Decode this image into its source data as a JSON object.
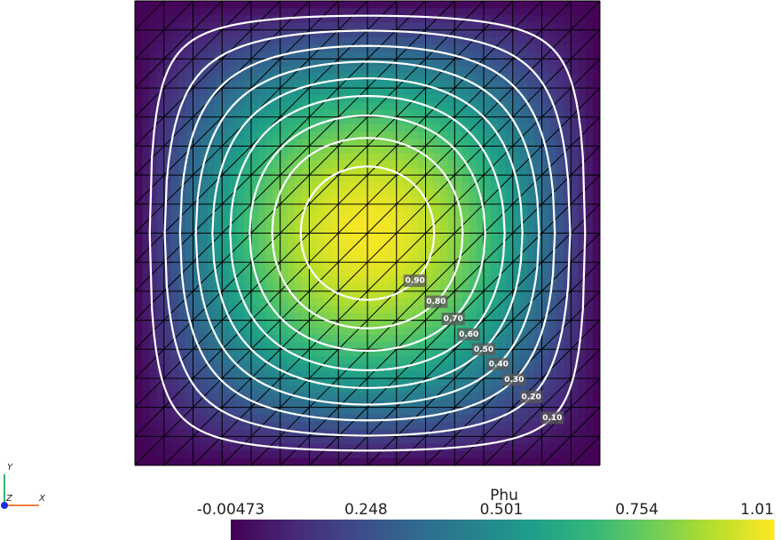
{
  "chart_data": {
    "type": "contour",
    "field_name": "Phu",
    "clim": [
      -0.00473,
      1.01
    ],
    "cticks": [
      -0.00473,
      0.248,
      0.501,
      0.754,
      1.01
    ],
    "colormap": "viridis",
    "mesh": "triangular",
    "contour_color": "#ffffff",
    "levels": [
      {
        "value": 0.1,
        "label": "0.10"
      },
      {
        "value": 0.2,
        "label": "0.20"
      },
      {
        "value": 0.3,
        "label": "0.30"
      },
      {
        "value": 0.4,
        "label": "0.40"
      },
      {
        "value": 0.5,
        "label": "0.50"
      },
      {
        "value": 0.6,
        "label": "0.60"
      },
      {
        "value": 0.7,
        "label": "0.70"
      },
      {
        "value": 0.8,
        "label": "0.80"
      },
      {
        "value": 0.9,
        "label": "0.90"
      }
    ],
    "axes_labels": [
      "X",
      "Y",
      "Z"
    ]
  }
}
